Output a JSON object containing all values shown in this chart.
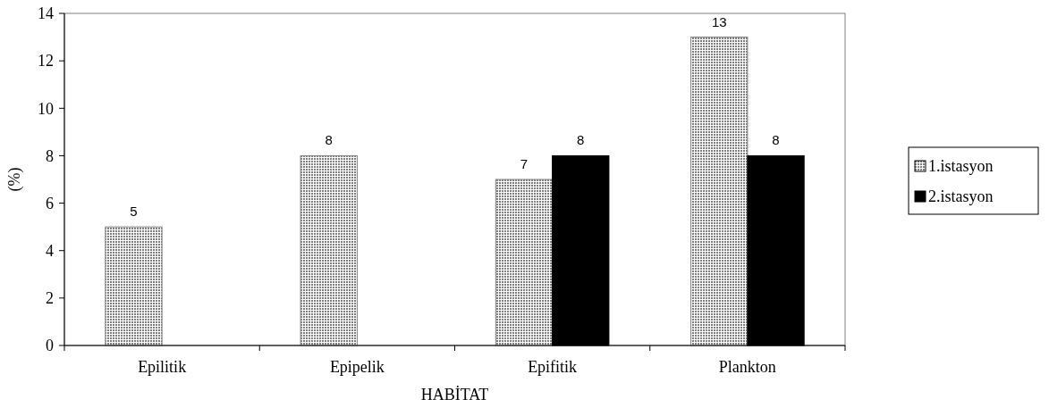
{
  "chart_data": {
    "type": "bar",
    "xlabel": "HABİTAT",
    "ylabel": "(%)",
    "categories": [
      "Epilitik",
      "Epipelik",
      "Epifitik",
      "Plankton"
    ],
    "series": [
      {
        "name": "1.istasyon",
        "color": "#808080",
        "values": [
          5,
          8,
          7,
          13
        ]
      },
      {
        "name": "2.istasyon",
        "color": "#000000",
        "values": [
          null,
          null,
          8,
          8
        ]
      }
    ],
    "ylim": [
      0,
      14
    ],
    "yticks": [
      0,
      2,
      4,
      6,
      8,
      10,
      12,
      14
    ],
    "data_labels": true,
    "legend": "right",
    "grid": false
  }
}
